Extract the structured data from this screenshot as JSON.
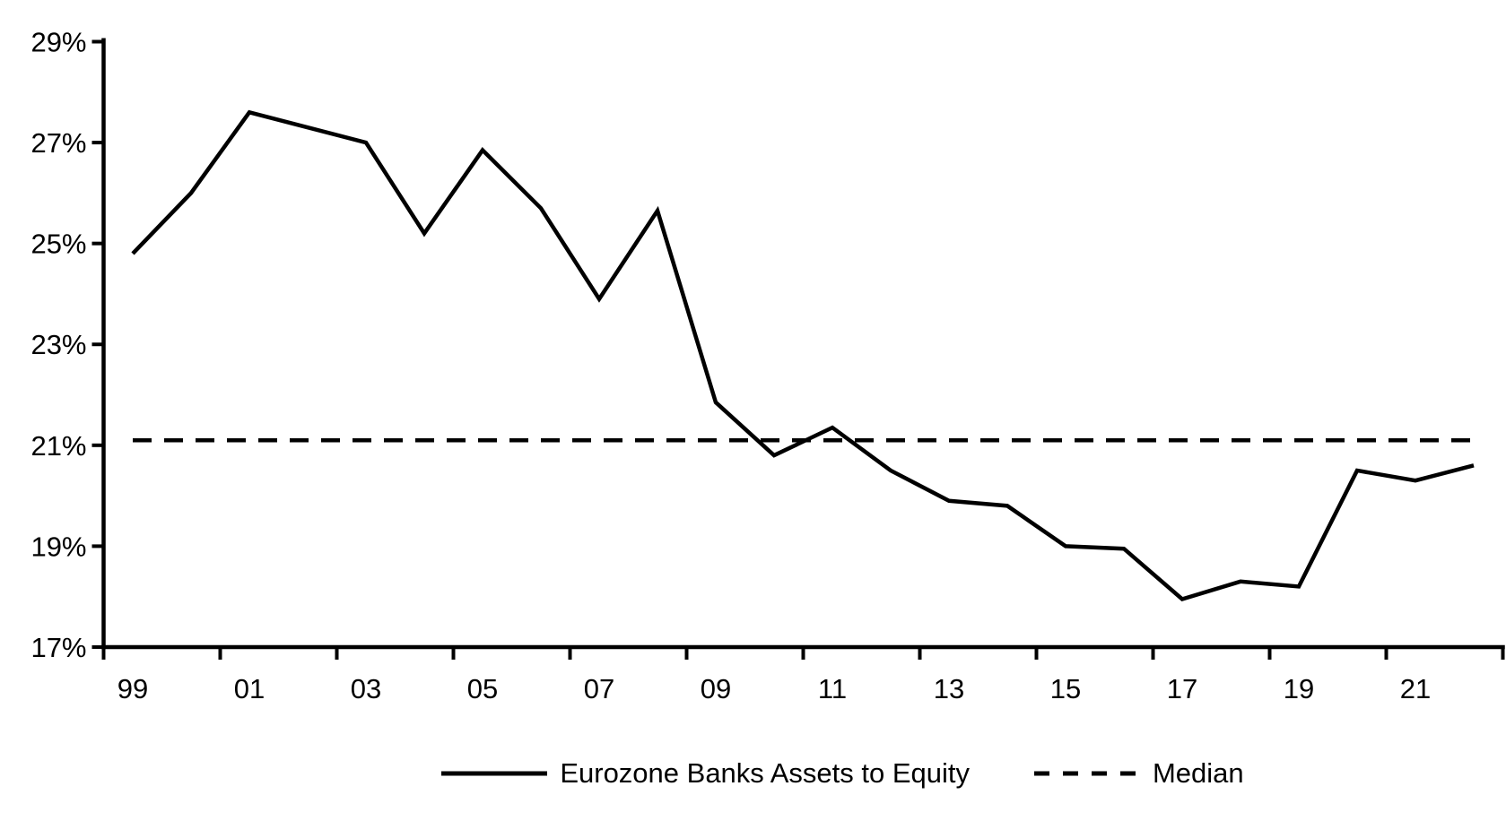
{
  "chart_data": {
    "type": "line",
    "title": "",
    "xlabel": "",
    "ylabel": "",
    "ylim": [
      17,
      29
    ],
    "y_axis_format": "percent",
    "grid": false,
    "legend_position": "bottom-center",
    "background_color": "#ffffff",
    "line_color": "#000000",
    "x": [
      1999,
      2000,
      2001,
      2002,
      2003,
      2004,
      2005,
      2006,
      2007,
      2008,
      2009,
      2010,
      2011,
      2012,
      2013,
      2014,
      2015,
      2016,
      2017,
      2018,
      2019,
      2020,
      2021,
      2022
    ],
    "series": [
      {
        "name": "Eurozone Banks Assets to Equity",
        "style": "solid",
        "values": [
          24.8,
          26.0,
          27.6,
          27.3,
          27.0,
          25.2,
          26.85,
          25.7,
          23.9,
          25.65,
          21.85,
          20.8,
          21.35,
          20.5,
          19.9,
          19.8,
          19.0,
          18.95,
          17.95,
          18.3,
          18.2,
          20.5,
          20.3,
          20.6
        ]
      },
      {
        "name": "Median",
        "style": "dashed",
        "constant_value": 21.1
      }
    ],
    "y_ticks": [
      {
        "value": 29,
        "label": "29%"
      },
      {
        "value": 27,
        "label": "27%"
      },
      {
        "value": 25,
        "label": "25%"
      },
      {
        "value": 23,
        "label": "23%"
      },
      {
        "value": 21,
        "label": "21%"
      },
      {
        "value": 19,
        "label": "19%"
      },
      {
        "value": 17,
        "label": "17%"
      }
    ],
    "x_tick_labels": [
      {
        "year": 1999,
        "label": "99"
      },
      {
        "year": 2001,
        "label": "01"
      },
      {
        "year": 2003,
        "label": "03"
      },
      {
        "year": 2005,
        "label": "05"
      },
      {
        "year": 2007,
        "label": "07"
      },
      {
        "year": 2009,
        "label": "09"
      },
      {
        "year": 2011,
        "label": "11"
      },
      {
        "year": 2013,
        "label": "13"
      },
      {
        "year": 2015,
        "label": "15"
      },
      {
        "year": 2017,
        "label": "17"
      },
      {
        "year": 2019,
        "label": "19"
      },
      {
        "year": 2021,
        "label": "21"
      }
    ]
  },
  "legend": {
    "series_label": "Eurozone Banks Assets to Equity",
    "median_label": "Median"
  }
}
